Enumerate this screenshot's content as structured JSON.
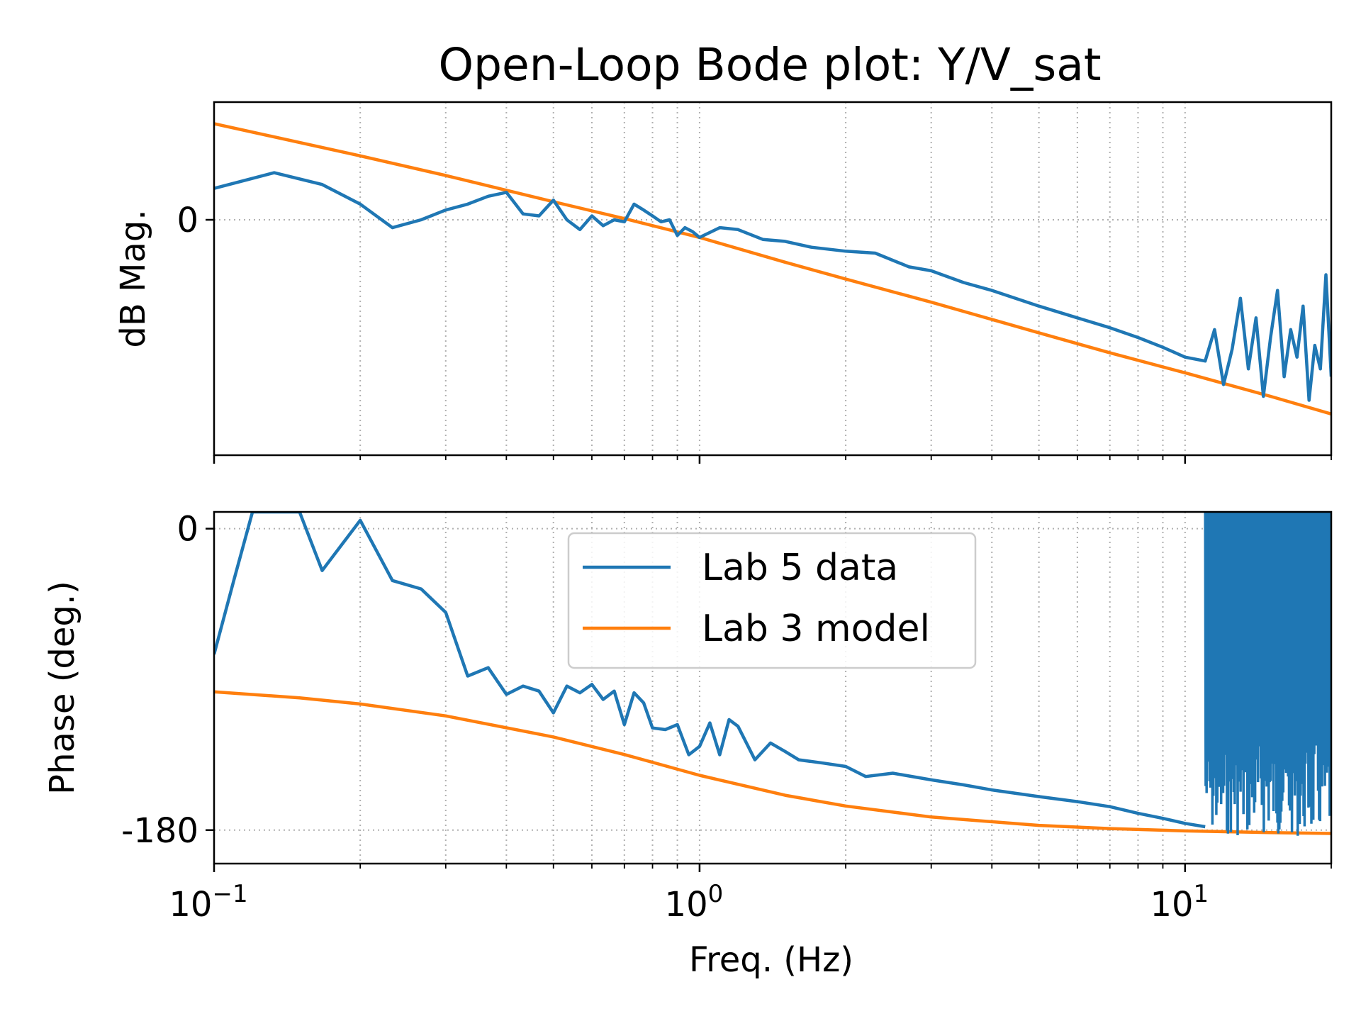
{
  "chart_data": {
    "type": "line",
    "title": "Open-Loop Bode plot: Y/V_sat",
    "xlabel": "Freq. (Hz)",
    "xscale": "log",
    "xlim": [
      0.1,
      20
    ],
    "x_tick_labels": [
      {
        "base": "10",
        "exp": "−1"
      },
      {
        "base": "10",
        "exp": "0"
      },
      {
        "base": "10",
        "exp": "1"
      }
    ],
    "grid": true,
    "legend": {
      "placement": "upper center of phase panel",
      "entries": [
        "Lab 5 data",
        "Lab 3 model"
      ]
    },
    "colors": {
      "data": "#1f77b4",
      "model": "#ff7f0e"
    },
    "magnitude": {
      "ylabel": "dB Mag.",
      "y_tick_labels": [
        "0"
      ],
      "ylim": [
        -60,
        30
      ],
      "series": [
        {
          "name": "Lab 5 data",
          "x": [
            0.1,
            0.133,
            0.167,
            0.2,
            0.233,
            0.267,
            0.3,
            0.333,
            0.367,
            0.4,
            0.433,
            0.467,
            0.5,
            0.533,
            0.567,
            0.6,
            0.633,
            0.667,
            0.7,
            0.733,
            0.767,
            0.8,
            0.833,
            0.867,
            0.9,
            0.933,
            0.967,
            1.0,
            1.1,
            1.2,
            1.35,
            1.5,
            1.7,
            2.0,
            2.3,
            2.7,
            3.0,
            3.5,
            4.0,
            5.0,
            6.0,
            7.0,
            8.0,
            9.0,
            10.0,
            11.0,
            11.5,
            12.0,
            12.5,
            13.0,
            13.5,
            14.0,
            14.5,
            15.0,
            15.5,
            16.0,
            16.5,
            17.0,
            17.5,
            18.0,
            18.5,
            19.0,
            19.5,
            20.0
          ],
          "y": [
            8,
            12,
            9,
            4,
            -2,
            0,
            2.5,
            4,
            6,
            7,
            1.5,
            1,
            5,
            0,
            -2.5,
            1,
            -1.5,
            0,
            -0.5,
            4,
            2.5,
            1,
            -0.5,
            0,
            -4,
            -2,
            -3,
            -4.5,
            -2,
            -2.5,
            -5,
            -5.5,
            -7,
            -8,
            -8.5,
            -12,
            -13,
            -16,
            -18,
            -22,
            -25,
            -27.5,
            -30,
            -32.5,
            -35,
            -36,
            -28,
            -42,
            -33,
            -20,
            -38,
            -25,
            -45,
            -30,
            -18,
            -40,
            -28,
            -35,
            -22,
            -46,
            -32,
            -38,
            -14,
            -40
          ]
        },
        {
          "name": "Lab 3 model",
          "x": [
            0.1,
            0.2,
            0.3,
            0.5,
            0.7,
            1.0,
            1.5,
            2.0,
            3.0,
            5.0,
            7.0,
            10.0,
            15.0,
            20.0
          ],
          "y": [
            24.5,
            16.3,
            11.3,
            4.6,
            0.3,
            -4.5,
            -10.8,
            -15.1,
            -21.0,
            -28.8,
            -33.9,
            -39.0,
            -45.0,
            -49.5
          ]
        }
      ]
    },
    "phase": {
      "ylabel": "Phase (deg.)",
      "y_tick_labels": [
        "0",
        "-180"
      ],
      "ylim": [
        -200,
        10
      ],
      "series": [
        {
          "name": "Lab 5 data",
          "x": [
            0.1,
            0.11,
            0.12,
            0.15,
            0.167,
            0.2,
            0.233,
            0.267,
            0.3,
            0.333,
            0.367,
            0.4,
            0.433,
            0.467,
            0.5,
            0.533,
            0.567,
            0.6,
            0.633,
            0.667,
            0.7,
            0.733,
            0.767,
            0.8,
            0.85,
            0.9,
            0.95,
            1.0,
            1.05,
            1.1,
            1.15,
            1.2,
            1.3,
            1.4,
            1.5,
            1.6,
            1.8,
            2.0,
            2.2,
            2.5,
            3.0,
            3.5,
            4.0,
            5.0,
            6.0,
            7.0,
            8.0,
            9.0,
            10.0,
            11.0
          ],
          "y": [
            -75,
            -30,
            10,
            10,
            -25,
            5,
            -31,
            -36,
            -50,
            -88,
            -83,
            -99,
            -94,
            -97,
            -110,
            -94,
            -98,
            -93,
            -102,
            -97,
            -117,
            -98,
            -104,
            -119,
            -120,
            -117,
            -135,
            -130,
            -116,
            -135,
            -114,
            -118,
            -138,
            -128,
            -133,
            -138,
            -140,
            -142,
            -148,
            -146,
            -150,
            -153,
            -156,
            -160,
            -163,
            -166,
            -170,
            -173,
            -176,
            -178
          ]
        },
        {
          "name": "Lab 3 model",
          "x": [
            0.1,
            0.15,
            0.2,
            0.3,
            0.5,
            0.7,
            1.0,
            1.5,
            2.0,
            3.0,
            5.0,
            7.0,
            10.0,
            15.0,
            20.0
          ],
          "y": [
            -97.4,
            -101,
            -104.7,
            -111.8,
            -124.4,
            -134.9,
            -147.3,
            -159.2,
            -165.6,
            -172.2,
            -177.2,
            -179.1,
            -180.5,
            -181.5,
            -182.0
          ]
        }
      ]
    }
  }
}
